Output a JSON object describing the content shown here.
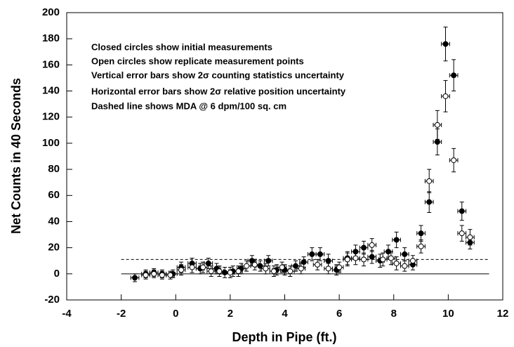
{
  "chart_data": {
    "type": "scatter",
    "x_label": "Depth in Pipe (ft.)",
    "y_label": "Net Counts in 40 Seconds",
    "annotations": [
      "Closed circles show initial measurements",
      "Open circles show replicate measurement points",
      "Vertical error bars show 2σ counting statistics uncertainty",
      "Horizontal error bars show 2σ relative position uncertainty",
      "Dashed line shows MDA @ 6 dpm/100 sq. cm"
    ],
    "xlim": [
      -4,
      12
    ],
    "xticks": [
      -4,
      -2,
      0,
      2,
      4,
      6,
      8,
      10,
      12
    ],
    "ylim": [
      -20,
      200
    ],
    "yticks": [
      -20,
      0,
      20,
      40,
      60,
      80,
      100,
      120,
      140,
      160,
      180,
      200
    ],
    "xerr": 0.15,
    "hlines": [
      {
        "y": 0,
        "xlim": [
          -2,
          11.5
        ],
        "style": "solid"
      },
      {
        "y": 11,
        "xlim": [
          -2,
          11.5
        ],
        "style": "dashed"
      }
    ],
    "series": [
      {
        "marker": "filled",
        "color": "#000000",
        "x": [
          -1.5,
          -1.1,
          -0.8,
          -0.5,
          -0.1,
          0.2,
          0.6,
          0.9,
          1.2,
          1.5,
          1.8,
          2.1,
          2.4,
          2.8,
          3.1,
          3.4,
          3.7,
          4.0,
          4.4,
          4.7,
          5.0,
          5.3,
          5.6,
          5.9,
          6.3,
          6.6,
          6.9,
          7.2,
          7.5,
          7.8,
          8.1,
          8.4,
          8.7,
          9.0,
          9.3,
          9.6,
          9.9,
          10.2,
          10.5,
          10.8
        ],
        "values": [
          -3,
          0,
          1,
          0,
          0,
          5,
          8,
          4,
          8,
          4,
          1,
          2,
          4,
          10,
          6,
          10,
          3,
          3,
          6,
          9,
          15,
          15,
          10,
          3,
          12,
          17,
          20,
          13,
          10,
          17,
          26,
          15,
          7,
          31,
          55,
          101,
          176,
          152,
          48,
          24
        ],
        "yerr": [
          3,
          3,
          3,
          3,
          3,
          4,
          4,
          4,
          4,
          4,
          4,
          4,
          4,
          4,
          4,
          4,
          4,
          4,
          4,
          4,
          5,
          5,
          5,
          4,
          5,
          5,
          5,
          5,
          5,
          5,
          6,
          5,
          4,
          6,
          8,
          10,
          13,
          12,
          7,
          5
        ]
      },
      {
        "marker": "open",
        "color": "#000000",
        "x": [
          -1.1,
          -0.8,
          -0.5,
          -0.2,
          0.2,
          0.6,
          1.0,
          1.3,
          1.6,
          2.0,
          2.3,
          2.6,
          2.9,
          3.3,
          3.6,
          3.9,
          4.2,
          4.6,
          5.2,
          5.6,
          6.0,
          6.3,
          6.6,
          6.9,
          7.2,
          7.6,
          7.9,
          8.1,
          8.4,
          8.7,
          9.0,
          9.3,
          9.6,
          9.9,
          10.2,
          10.5,
          10.8
        ],
        "values": [
          -1,
          0,
          -1,
          -1,
          3,
          5,
          5,
          2,
          2,
          1,
          2,
          6,
          7,
          4,
          2,
          5,
          2,
          4,
          7,
          4,
          5,
          11,
          12,
          11,
          22,
          11,
          12,
          8,
          6,
          10,
          21,
          71,
          114,
          136,
          87,
          31,
          28
        ],
        "yerr": [
          3,
          3,
          3,
          3,
          4,
          4,
          4,
          4,
          4,
          4,
          4,
          4,
          4,
          4,
          4,
          4,
          4,
          4,
          4,
          4,
          4,
          5,
          5,
          5,
          5,
          5,
          5,
          5,
          4,
          4,
          5,
          9,
          11,
          12,
          9,
          6,
          6
        ]
      }
    ]
  }
}
